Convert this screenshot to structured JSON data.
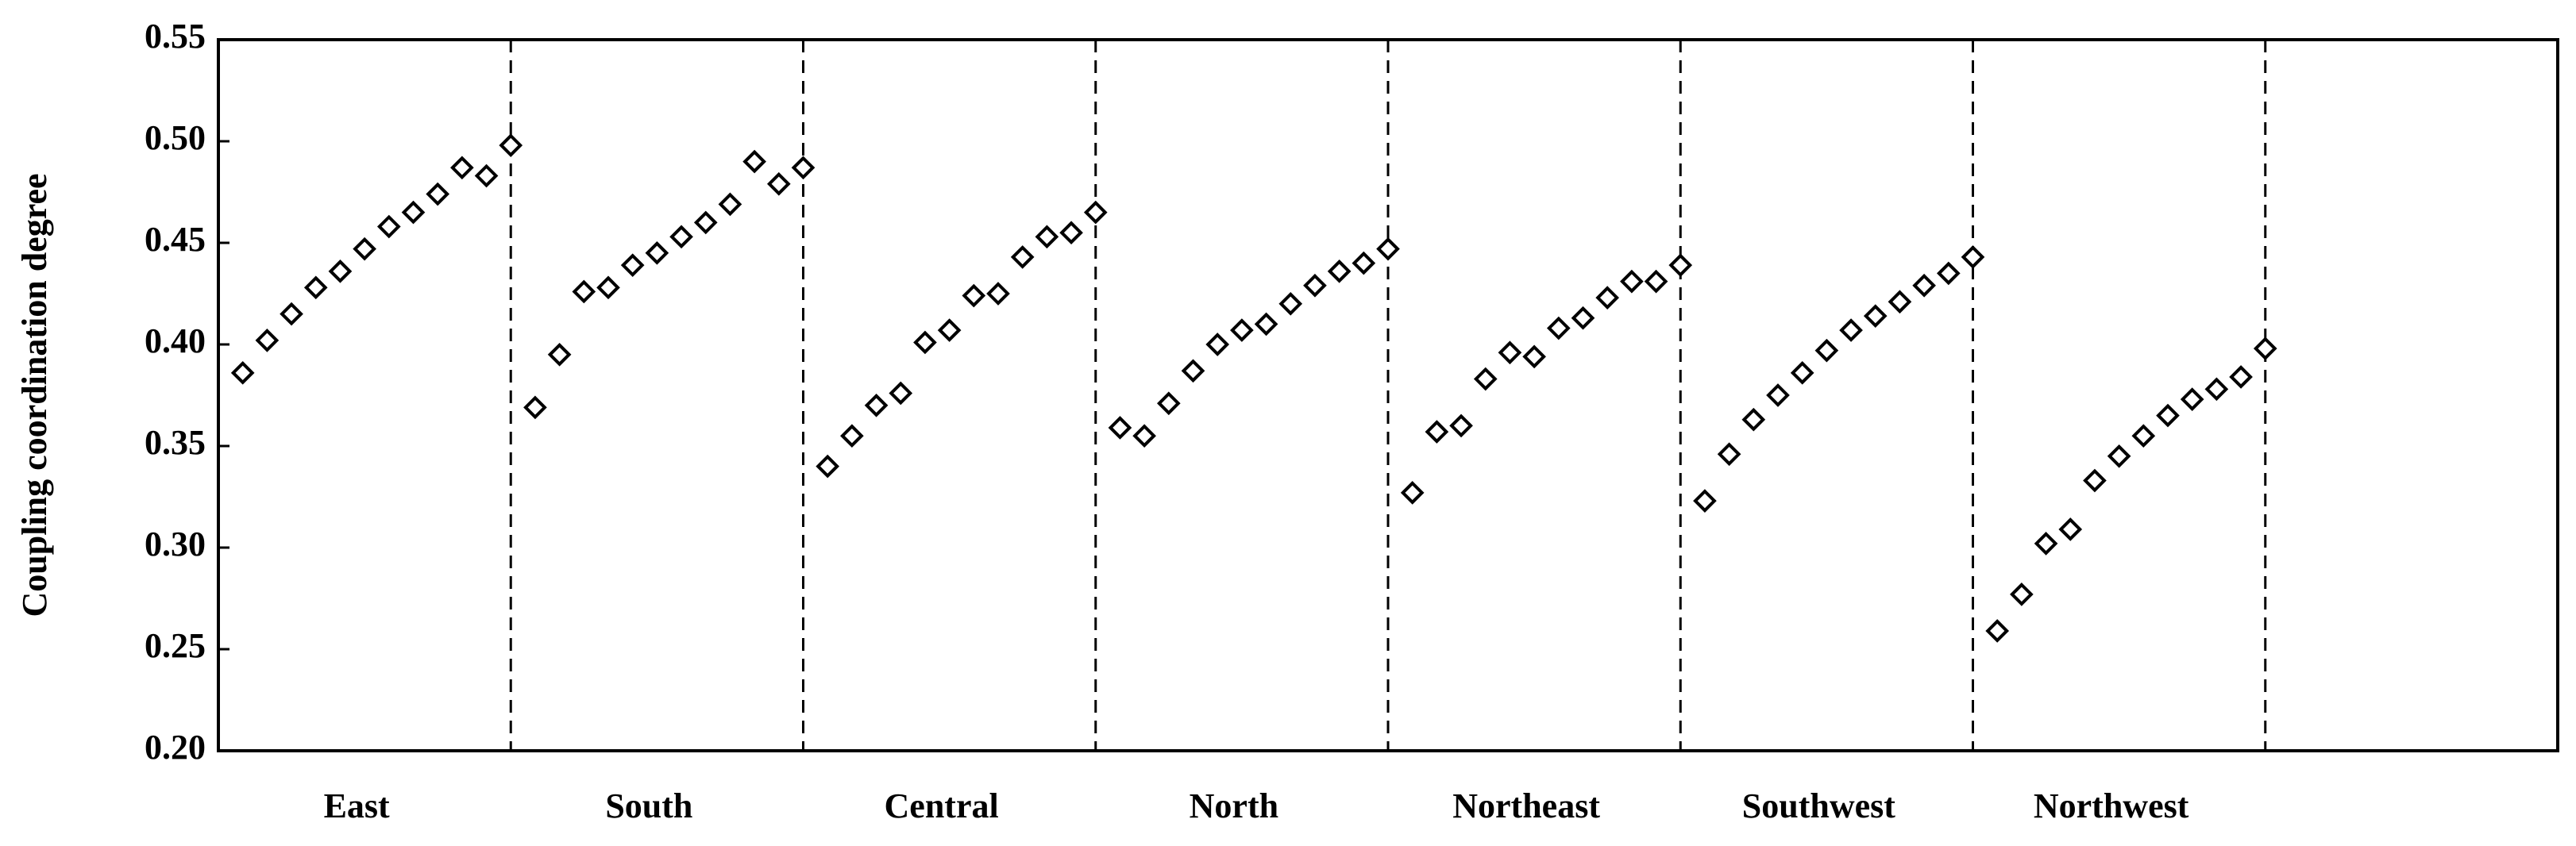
{
  "chart_data": {
    "type": "scatter",
    "ylabel": "Coupling coordination degree",
    "ylim": [
      0.2,
      0.55
    ],
    "yticks": [
      {
        "value": 0.2,
        "label": "0.20"
      },
      0.25,
      {
        "value": 0.3,
        "label": "0.30"
      },
      0.35,
      {
        "value": 0.4,
        "label": "0.40"
      },
      0.45,
      {
        "value": 0.5,
        "label": "0.50"
      },
      0.55
    ],
    "marker": "diamond",
    "color": "#000000",
    "groups": [
      {
        "name": "East",
        "values": [
          0.386,
          0.402,
          0.415,
          0.428,
          0.436,
          0.447,
          0.458,
          0.465,
          0.474,
          0.487,
          0.483,
          0.498
        ]
      },
      {
        "name": "South",
        "values": [
          0.369,
          0.395,
          0.426,
          0.428,
          0.439,
          0.445,
          0.453,
          0.46,
          0.469,
          0.49,
          0.479,
          0.487
        ]
      },
      {
        "name": "Central",
        "values": [
          0.34,
          0.355,
          0.37,
          0.376,
          0.401,
          0.407,
          0.424,
          0.425,
          0.443,
          0.453,
          0.455,
          0.465
        ]
      },
      {
        "name": "North",
        "values": [
          0.359,
          0.355,
          0.371,
          0.387,
          0.4,
          0.407,
          0.41,
          0.42,
          0.429,
          0.436,
          0.44,
          0.447
        ]
      },
      {
        "name": "Northeast",
        "values": [
          0.327,
          0.357,
          0.36,
          0.383,
          0.396,
          0.394,
          0.408,
          0.413,
          0.423,
          0.431,
          0.431,
          0.439
        ]
      },
      {
        "name": "Southwest",
        "values": [
          0.323,
          0.346,
          0.363,
          0.375,
          0.386,
          0.397,
          0.407,
          0.414,
          0.421,
          0.429,
          0.435,
          0.443
        ]
      },
      {
        "name": "Northwest",
        "values": [
          0.259,
          0.277,
          0.302,
          0.309,
          0.333,
          0.345,
          0.355,
          0.365,
          0.373,
          0.378,
          0.384,
          0.398
        ]
      }
    ]
  }
}
